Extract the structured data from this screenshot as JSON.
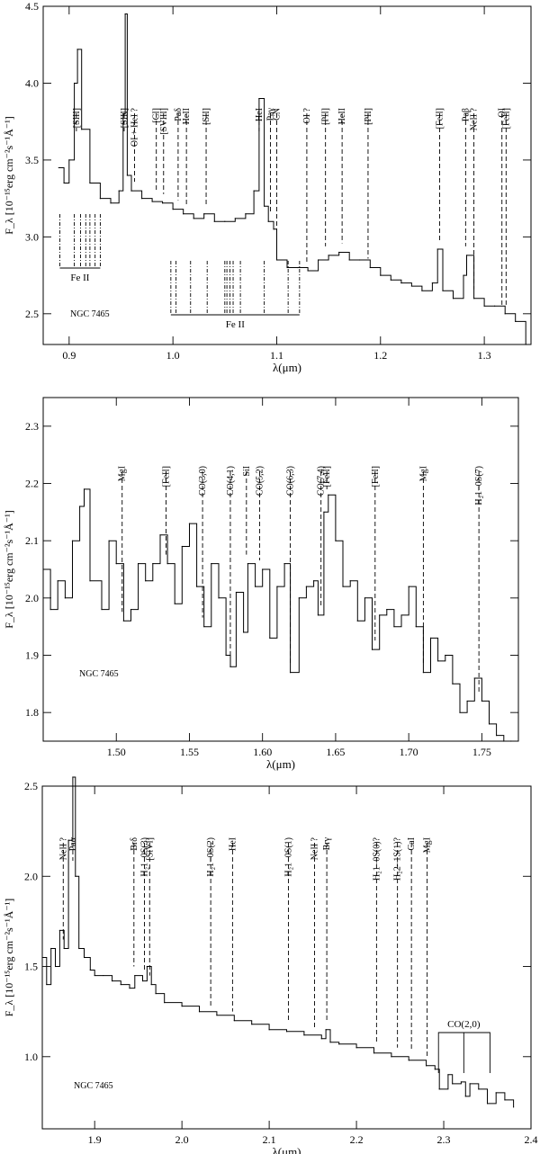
{
  "chart_data": [
    {
      "type": "line",
      "title": "",
      "xlabel": "λ(μm)",
      "ylabel": "F_λ [10⁻¹⁵erg cm⁻²s⁻¹Å⁻¹]",
      "object_label": "NGC 7465",
      "xlim": [
        0.875,
        1.345
      ],
      "ylim": [
        2.3,
        4.5
      ],
      "xticks": [
        0.9,
        1.0,
        1.1,
        1.2,
        1.3
      ],
      "yticks": [
        2.5,
        3.0,
        3.5,
        4.0,
        4.5
      ],
      "grid": false,
      "series": [
        {
          "x": [
            0.89,
            0.895,
            0.9,
            0.905,
            0.908,
            0.912,
            0.92,
            0.93,
            0.94,
            0.948,
            0.952,
            0.954,
            0.956,
            0.96,
            0.97,
            0.98,
            0.99,
            1.0,
            1.01,
            1.02,
            1.03,
            1.04,
            1.05,
            1.06,
            1.07,
            1.078,
            1.083,
            1.088,
            1.092,
            1.097,
            1.1,
            1.11,
            1.12,
            1.13,
            1.14,
            1.15,
            1.16,
            1.17,
            1.18,
            1.19,
            1.2,
            1.21,
            1.22,
            1.23,
            1.24,
            1.25,
            1.255,
            1.26,
            1.27,
            1.28,
            1.283,
            1.29,
            1.3,
            1.31,
            1.32,
            1.33,
            1.34
          ],
          "y": [
            3.45,
            3.35,
            3.5,
            4.0,
            4.22,
            3.7,
            3.35,
            3.25,
            3.22,
            3.3,
            3.8,
            4.45,
            3.4,
            3.3,
            3.25,
            3.23,
            3.22,
            3.18,
            3.15,
            3.12,
            3.15,
            3.1,
            3.1,
            3.12,
            3.15,
            3.3,
            3.9,
            3.2,
            3.1,
            3.05,
            2.85,
            2.8,
            2.8,
            2.78,
            2.85,
            2.88,
            2.9,
            2.85,
            2.85,
            2.8,
            2.75,
            2.72,
            2.7,
            2.68,
            2.65,
            2.7,
            2.92,
            2.65,
            2.6,
            2.75,
            2.88,
            2.6,
            2.55,
            2.55,
            2.5,
            2.45,
            2.3
          ]
        }
      ],
      "lines": [
        {
          "label": "[SIII]",
          "x": 0.907
        },
        {
          "label": "[SIII]",
          "x": 0.953
        },
        {
          "label": "OI + HeI ?",
          "x": 0.963
        },
        {
          "label": "[CI]",
          "x": 0.984
        },
        {
          "label": "[SVIII]",
          "x": 0.991
        },
        {
          "label": "Paδ",
          "x": 1.005
        },
        {
          "label": "HeII",
          "x": 1.013
        },
        {
          "label": "[SII]",
          "x": 1.032
        },
        {
          "label": "HeI",
          "x": 1.083
        },
        {
          "label": "Paγ",
          "x": 1.094
        },
        {
          "label": "CN",
          "x": 1.1
        },
        {
          "label": "OI ?",
          "x": 1.129
        },
        {
          "label": "[PII]",
          "x": 1.147
        },
        {
          "label": "HeII",
          "x": 1.163
        },
        {
          "label": "[PII]",
          "x": 1.188
        },
        {
          "label": "[FeII]",
          "x": 1.257
        },
        {
          "label": "Paβ",
          "x": 1.282
        },
        {
          "label": "NeII ?",
          "x": 1.29
        },
        {
          "label": "OI",
          "x": 1.317
        },
        {
          "label": "[FeII]",
          "x": 1.321
        }
      ],
      "groups": [
        {
          "label": "Fe II",
          "x": [
            0.891,
            0.905,
            0.911,
            0.916,
            0.92,
            0.925,
            0.93
          ]
        },
        {
          "label": "Fe II",
          "x": [
            0.998,
            1.003,
            1.017,
            1.033,
            1.05,
            1.052,
            1.055,
            1.058,
            1.065,
            1.088,
            1.111,
            1.122
          ]
        }
      ]
    },
    {
      "type": "line",
      "title": "",
      "xlabel": "λ(μm)",
      "ylabel": "F_λ [10⁻¹⁵erg cm⁻²s⁻¹Å⁻¹]",
      "object_label": "NGC 7465",
      "xlim": [
        1.45,
        1.775
      ],
      "ylim": [
        1.75,
        2.35
      ],
      "xticks": [
        1.5,
        1.55,
        1.6,
        1.65,
        1.7,
        1.75
      ],
      "yticks": [
        1.8,
        1.9,
        2.0,
        2.1,
        2.2,
        2.3
      ],
      "grid": false,
      "series": [
        {
          "x": [
            1.45,
            1.455,
            1.46,
            1.465,
            1.47,
            1.475,
            1.478,
            1.482,
            1.49,
            1.495,
            1.5,
            1.505,
            1.51,
            1.515,
            1.52,
            1.525,
            1.53,
            1.535,
            1.54,
            1.545,
            1.55,
            1.555,
            1.56,
            1.565,
            1.57,
            1.575,
            1.578,
            1.582,
            1.587,
            1.59,
            1.595,
            1.6,
            1.605,
            1.61,
            1.615,
            1.619,
            1.625,
            1.63,
            1.635,
            1.638,
            1.642,
            1.645,
            1.65,
            1.655,
            1.66,
            1.665,
            1.67,
            1.675,
            1.68,
            1.685,
            1.69,
            1.695,
            1.7,
            1.705,
            1.71,
            1.715,
            1.72,
            1.725,
            1.73,
            1.735,
            1.74,
            1.745,
            1.75,
            1.755,
            1.76,
            1.765,
            1.77
          ],
          "y": [
            2.05,
            1.98,
            2.03,
            2.0,
            2.1,
            2.16,
            2.19,
            2.03,
            1.98,
            2.1,
            2.06,
            1.96,
            1.98,
            2.06,
            2.03,
            2.06,
            2.11,
            2.06,
            1.99,
            2.09,
            2.13,
            2.02,
            1.95,
            2.06,
            2.0,
            1.9,
            1.88,
            2.01,
            1.94,
            2.06,
            2.02,
            2.05,
            1.93,
            2.02,
            2.06,
            1.87,
            2.0,
            2.02,
            2.03,
            1.97,
            2.15,
            2.18,
            2.1,
            2.02,
            2.03,
            1.96,
            2.0,
            1.91,
            1.97,
            1.98,
            1.95,
            1.97,
            2.02,
            1.95,
            1.87,
            1.93,
            1.89,
            1.9,
            1.85,
            1.8,
            1.82,
            1.86,
            1.82,
            1.78,
            1.76,
            1.75,
            1.75
          ]
        }
      ],
      "lines": [
        {
          "label": "MgI",
          "x": 1.504
        },
        {
          "label": "[FeII]",
          "x": 1.534
        },
        {
          "label": "CO(3,0)",
          "x": 1.559
        },
        {
          "label": "CO(4,1)",
          "x": 1.578
        },
        {
          "label": "SiI",
          "x": 1.589
        },
        {
          "label": "CO(5,2)",
          "x": 1.598
        },
        {
          "label": "CO(6,3)",
          "x": 1.619
        },
        {
          "label": "CO(7,4)",
          "x": 1.64
        },
        {
          "label": "[FeII]",
          "x": 1.644
        },
        {
          "label": "[FeII]",
          "x": 1.677
        },
        {
          "label": "MgI",
          "x": 1.71
        },
        {
          "label": "H₂1−0S(7)",
          "x": 1.748
        }
      ]
    },
    {
      "type": "line",
      "title": "",
      "xlabel": "λ(μm)",
      "ylabel": "F_λ [10⁻¹⁵erg cm⁻²s⁻¹Å⁻¹]",
      "object_label": "NGC 7465",
      "xlim": [
        1.84,
        2.4
      ],
      "ylim": [
        0.6,
        2.5
      ],
      "xticks": [
        1.9,
        2.0,
        2.1,
        2.2,
        2.3,
        2.4
      ],
      "yticks": [
        1.0,
        1.5,
        2.0,
        2.5
      ],
      "grid": false,
      "series": [
        {
          "x": [
            1.84,
            1.845,
            1.85,
            1.855,
            1.86,
            1.865,
            1.87,
            1.875,
            1.878,
            1.882,
            1.888,
            1.895,
            1.9,
            1.91,
            1.92,
            1.93,
            1.94,
            1.946,
            1.955,
            1.96,
            1.965,
            1.97,
            1.98,
            2.0,
            2.02,
            2.04,
            2.06,
            2.08,
            2.1,
            2.12,
            2.14,
            2.16,
            2.165,
            2.17,
            2.18,
            2.2,
            2.22,
            2.24,
            2.26,
            2.28,
            2.29,
            2.295,
            2.305,
            2.31,
            2.32,
            2.325,
            2.33,
            2.34,
            2.35,
            2.36,
            2.37,
            2.38
          ],
          "y": [
            1.55,
            1.4,
            1.6,
            1.5,
            1.7,
            1.6,
            2.2,
            2.55,
            2.0,
            1.6,
            1.55,
            1.48,
            1.45,
            1.45,
            1.42,
            1.4,
            1.38,
            1.45,
            1.42,
            1.5,
            1.4,
            1.35,
            1.3,
            1.28,
            1.25,
            1.23,
            1.2,
            1.18,
            1.15,
            1.14,
            1.12,
            1.1,
            1.15,
            1.08,
            1.07,
            1.05,
            1.02,
            1.0,
            0.98,
            0.95,
            0.93,
            0.82,
            0.9,
            0.85,
            0.86,
            0.78,
            0.85,
            0.82,
            0.74,
            0.8,
            0.76,
            0.72
          ]
        }
      ],
      "lines": [
        {
          "label": "NeII ?",
          "x": 1.864
        },
        {
          "label": "Paα",
          "x": 1.875
        },
        {
          "label": "Brδ",
          "x": 1.945
        },
        {
          "label": "H₂1−0S(3)",
          "x": 1.957
        },
        {
          "label": "[SiVI]",
          "x": 1.963
        },
        {
          "label": "H₂1−0S(2)",
          "x": 2.033
        },
        {
          "label": "HeI",
          "x": 2.058
        },
        {
          "label": "H₂1−0S(1)",
          "x": 2.122
        },
        {
          "label": "NeII ?",
          "x": 2.152
        },
        {
          "label": "Brγ",
          "x": 2.166
        },
        {
          "label": "H₂1−0S(0)?",
          "x": 2.223
        },
        {
          "label": "H₂2−1S(1)?",
          "x": 2.247
        },
        {
          "label": "CaI",
          "x": 2.263
        },
        {
          "label": "MgI",
          "x": 2.281
        }
      ],
      "bands": [
        {
          "label": "CO(2,0)",
          "x": [
            2.294,
            2.323,
            2.353
          ]
        }
      ]
    }
  ]
}
